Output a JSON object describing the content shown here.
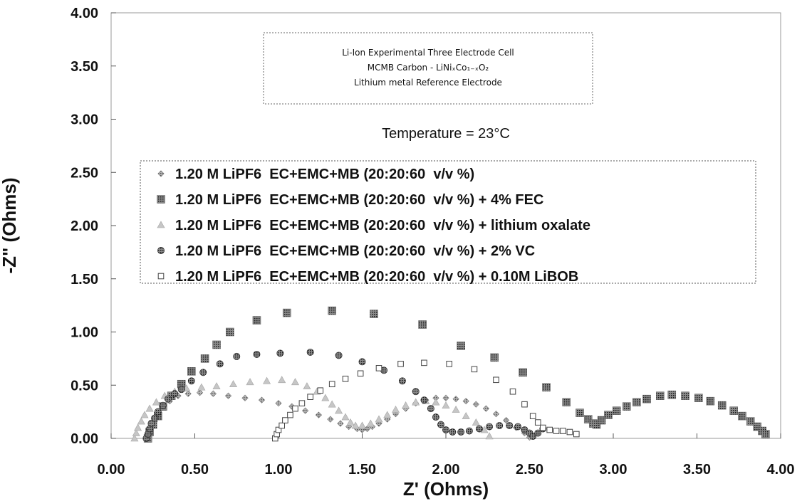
{
  "chart_data": {
    "type": "scatter",
    "xlabel": "Z' (Ohms)",
    "ylabel": "-Z\" (Ohms)",
    "xlim": [
      0,
      4
    ],
    "ylim": [
      0,
      4
    ],
    "x_ticks": [
      "0.00",
      "0.50",
      "1.00",
      "1.50",
      "2.00",
      "2.50",
      "3.00",
      "3.50",
      "4.00"
    ],
    "y_ticks": [
      "0.00",
      "0.50",
      "1.00",
      "1.50",
      "2.00",
      "2.50",
      "3.00",
      "3.50",
      "4.00"
    ],
    "grid": false,
    "legend_position": "center",
    "info_box": {
      "line1": "Li-Ion Experimental Three Electrode Cell",
      "line2": "MCMB Carbon - LiNiₓCo₁₋ₓO₂",
      "line3": "Lithium metal Reference Electrode"
    },
    "annotation": "Temperature = 23°C",
    "series": [
      {
        "name": "1.20 M LiPF6  EC+EMC+MB (20:20:60  v/v %)",
        "marker": "diamond",
        "x": [
          0.22,
          0.23,
          0.24,
          0.26,
          0.28,
          0.31,
          0.35,
          0.4,
          0.46,
          0.53,
          0.61,
          0.7,
          0.8,
          0.9,
          1.0,
          1.08,
          1.16,
          1.24,
          1.31,
          1.37,
          1.42,
          1.47,
          1.5,
          1.53,
          1.56,
          1.6,
          1.65,
          1.7,
          1.76,
          1.82,
          1.88,
          1.94,
          2.0,
          2.06,
          2.12,
          2.18,
          2.24,
          2.3,
          2.36,
          2.42,
          2.47,
          2.5
        ],
        "y": [
          0.0,
          0.05,
          0.1,
          0.16,
          0.22,
          0.29,
          0.35,
          0.4,
          0.42,
          0.43,
          0.42,
          0.4,
          0.38,
          0.36,
          0.33,
          0.3,
          0.26,
          0.22,
          0.18,
          0.14,
          0.11,
          0.09,
          0.08,
          0.09,
          0.11,
          0.14,
          0.18,
          0.23,
          0.28,
          0.33,
          0.36,
          0.38,
          0.38,
          0.37,
          0.35,
          0.32,
          0.28,
          0.23,
          0.17,
          0.1,
          0.05,
          0.01
        ]
      },
      {
        "name": "1.20 M LiPF6  EC+EMC+MB (20:20:60  v/v %) + 4% FEC",
        "marker": "square",
        "x": [
          0.22,
          0.23,
          0.25,
          0.28,
          0.31,
          0.36,
          0.42,
          0.48,
          0.56,
          0.63,
          0.71,
          0.87,
          1.05,
          1.32,
          1.57,
          1.86,
          2.09,
          2.29,
          2.46,
          2.6,
          2.72,
          2.8,
          2.85,
          2.88,
          2.9,
          2.93,
          2.97,
          3.02,
          3.08,
          3.14,
          3.2,
          3.28,
          3.35,
          3.43,
          3.51,
          3.58,
          3.65,
          3.72,
          3.77,
          3.82,
          3.86,
          3.89,
          3.91
        ],
        "y": [
          0.0,
          0.06,
          0.13,
          0.21,
          0.3,
          0.4,
          0.51,
          0.63,
          0.75,
          0.88,
          1.0,
          1.11,
          1.18,
          1.2,
          1.17,
          1.07,
          0.87,
          0.76,
          0.62,
          0.48,
          0.34,
          0.24,
          0.18,
          0.14,
          0.13,
          0.17,
          0.22,
          0.26,
          0.3,
          0.34,
          0.37,
          0.4,
          0.41,
          0.4,
          0.38,
          0.35,
          0.31,
          0.26,
          0.21,
          0.16,
          0.11,
          0.07,
          0.04
        ]
      },
      {
        "name": "1.20 M LiPF6  EC+EMC+MB (20:20:60  v/v %) + lithium oxalate",
        "marker": "triangle",
        "x": [
          0.14,
          0.15,
          0.16,
          0.18,
          0.2,
          0.23,
          0.27,
          0.32,
          0.38,
          0.45,
          0.54,
          0.63,
          0.73,
          0.83,
          0.93,
          1.02,
          1.1,
          1.17,
          1.23,
          1.28,
          1.32,
          1.36,
          1.4,
          1.43,
          1.46,
          1.5,
          1.55,
          1.6,
          1.65,
          1.7,
          1.76,
          1.82,
          1.88,
          1.94,
          2.0,
          2.06,
          2.12,
          2.18,
          2.23,
          2.26
        ],
        "y": [
          0.0,
          0.05,
          0.1,
          0.16,
          0.22,
          0.28,
          0.34,
          0.4,
          0.44,
          0.47,
          0.48,
          0.49,
          0.51,
          0.53,
          0.54,
          0.55,
          0.53,
          0.49,
          0.44,
          0.38,
          0.32,
          0.26,
          0.2,
          0.15,
          0.12,
          0.12,
          0.14,
          0.18,
          0.22,
          0.27,
          0.31,
          0.34,
          0.35,
          0.34,
          0.31,
          0.27,
          0.21,
          0.15,
          0.08,
          0.02
        ]
      },
      {
        "name": "1.20 M LiPF6  EC+EMC+MB (20:20:60  v/v %) + 2% VC",
        "marker": "circle",
        "x": [
          0.21,
          0.22,
          0.23,
          0.24,
          0.26,
          0.28,
          0.31,
          0.34,
          0.38,
          0.42,
          0.48,
          0.55,
          0.65,
          0.75,
          0.87,
          1.01,
          1.19,
          1.36,
          1.5,
          1.63,
          1.74,
          1.82,
          1.87,
          1.91,
          1.94,
          1.97,
          2.0,
          2.04,
          2.09,
          2.14,
          2.2,
          2.26,
          2.32,
          2.38,
          2.43,
          2.47,
          2.5,
          2.52,
          2.55,
          2.58
        ],
        "y": [
          0.0,
          0.04,
          0.09,
          0.14,
          0.19,
          0.25,
          0.31,
          0.37,
          0.42,
          0.46,
          0.54,
          0.62,
          0.7,
          0.77,
          0.79,
          0.8,
          0.81,
          0.78,
          0.72,
          0.64,
          0.54,
          0.44,
          0.36,
          0.28,
          0.2,
          0.13,
          0.08,
          0.06,
          0.06,
          0.07,
          0.09,
          0.11,
          0.12,
          0.12,
          0.11,
          0.08,
          0.05,
          0.02,
          0.05,
          0.09
        ]
      },
      {
        "name": "1.20 M LiPF6  EC+EMC+MB (20:20:60  v/v %) + 0.10M LiBOB",
        "marker": "open-square",
        "x": [
          0.98,
          0.99,
          1.0,
          1.02,
          1.04,
          1.07,
          1.1,
          1.14,
          1.19,
          1.25,
          1.32,
          1.4,
          1.49,
          1.6,
          1.73,
          1.87,
          2.02,
          2.17,
          2.3,
          2.4,
          2.47,
          2.52,
          2.55,
          2.58,
          2.62,
          2.66,
          2.7,
          2.74,
          2.78
        ],
        "y": [
          0.0,
          0.04,
          0.08,
          0.12,
          0.17,
          0.22,
          0.28,
          0.33,
          0.39,
          0.45,
          0.51,
          0.56,
          0.61,
          0.66,
          0.7,
          0.71,
          0.7,
          0.65,
          0.55,
          0.44,
          0.32,
          0.21,
          0.15,
          0.1,
          0.08,
          0.07,
          0.07,
          0.06,
          0.04
        ]
      }
    ]
  }
}
